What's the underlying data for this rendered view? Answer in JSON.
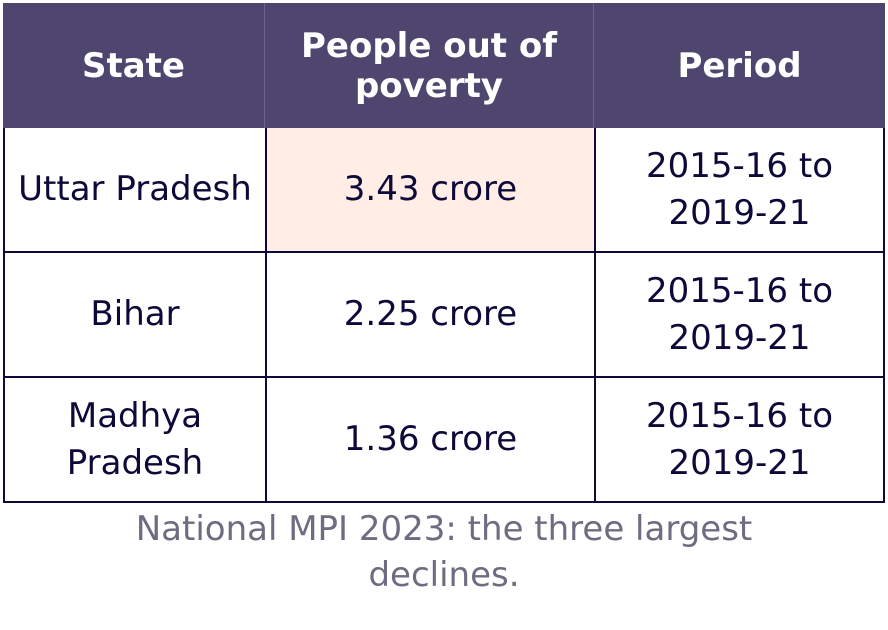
{
  "chart_data": {
    "type": "table",
    "columns": [
      "State",
      "People out of poverty",
      "Period"
    ],
    "rows": [
      [
        "Uttar Pradesh",
        "3.43 crore",
        "2015-16 to 2019-21"
      ],
      [
        "Bihar",
        "2.25 crore",
        "2015-16 to 2019-21"
      ],
      [
        "Madhya Pradesh",
        "1.36 crore",
        "2015-16 to 2019-21"
      ]
    ],
    "highlighted_cell": {
      "row": 0,
      "column": 1
    },
    "caption": "National MPI 2023: the three largest declines."
  },
  "colors": {
    "header_bg": "#4f4670",
    "header_text": "#ffffff",
    "body_text": "#0d0a3a",
    "border": "#0d0a3a",
    "highlight_bg": "#ffede6",
    "caption_text": "#6e6c80"
  }
}
